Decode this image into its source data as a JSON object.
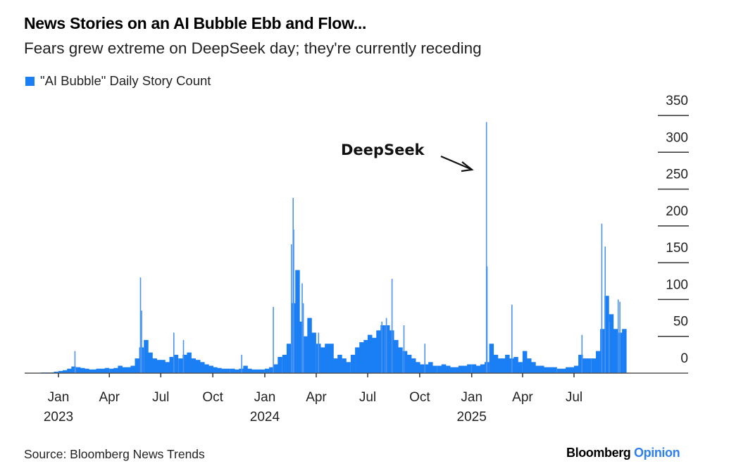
{
  "header": {
    "title": "News Stories on an AI Bubble Ebb and Flow...",
    "subtitle": "Fears grew extreme on DeepSeek day; they're currently receding"
  },
  "footer": {
    "source": "Source: Bloomberg News Trends",
    "logo_brand": "Bloomberg",
    "logo_section": "Opinion"
  },
  "colors": {
    "bar": "#1a7ef5",
    "spike": "#4a94f0",
    "axis": "#333333",
    "logo_accent": "#2f7ff0"
  },
  "chart_data": {
    "type": "bar",
    "title": "News Stories on an AI Bubble Ebb and Flow...",
    "subtitle": "Fears grew extreme on DeepSeek day; they're currently receding",
    "legend": [
      {
        "label": "\"AI Bubble\" Daily Story Count",
        "color": "#1a7ef5"
      }
    ],
    "legend_placement": "top-left",
    "ylabel": "",
    "xlabel": "",
    "ylim": [
      0,
      350
    ],
    "y_ticks": [
      "0",
      "50",
      "100",
      "150",
      "200",
      "250",
      "300",
      "350"
    ],
    "y_tick_values": [
      0,
      50,
      100,
      150,
      200,
      250,
      300,
      350
    ],
    "y_axis_side": "right",
    "x_ticks": [
      {
        "date": "2023-01-01",
        "label": "Jan",
        "year": "2023"
      },
      {
        "date": "2023-04-01",
        "label": "Apr",
        "year": ""
      },
      {
        "date": "2023-07-01",
        "label": "Jul",
        "year": ""
      },
      {
        "date": "2023-10-01",
        "label": "Oct",
        "year": ""
      },
      {
        "date": "2024-01-01",
        "label": "Jan",
        "year": "2024"
      },
      {
        "date": "2024-04-01",
        "label": "Apr",
        "year": ""
      },
      {
        "date": "2024-07-01",
        "label": "Jul",
        "year": ""
      },
      {
        "date": "2024-10-01",
        "label": "Oct",
        "year": ""
      },
      {
        "date": "2025-01-01",
        "label": "Jan",
        "year": "2025"
      },
      {
        "date": "2025-04-01",
        "label": "Apr",
        "year": ""
      },
      {
        "date": "2025-07-01",
        "label": "Jul",
        "year": ""
      }
    ],
    "weekly_by_month": [
      {
        "month": "2022-12",
        "values": [
          1,
          1,
          1,
          2
        ]
      },
      {
        "month": "2023-01",
        "values": [
          3,
          4,
          6,
          9
        ]
      },
      {
        "month": "2023-02",
        "values": [
          8,
          7,
          6,
          5
        ]
      },
      {
        "month": "2023-03",
        "values": [
          5,
          6,
          6,
          7
        ]
      },
      {
        "month": "2023-04",
        "values": [
          6,
          7,
          10,
          8
        ]
      },
      {
        "month": "2023-05",
        "values": [
          8,
          10,
          20,
          35
        ]
      },
      {
        "month": "2023-06",
        "values": [
          45,
          28,
          20,
          18
        ]
      },
      {
        "month": "2023-07",
        "values": [
          18,
          15,
          22,
          25
        ]
      },
      {
        "month": "2023-08",
        "values": [
          20,
          25,
          28,
          20
        ]
      },
      {
        "month": "2023-09",
        "values": [
          18,
          15,
          12,
          10
        ]
      },
      {
        "month": "2023-10",
        "values": [
          8,
          7,
          6,
          6
        ]
      },
      {
        "month": "2023-11",
        "values": [
          6,
          5,
          6,
          10
        ]
      },
      {
        "month": "2023-12",
        "values": [
          6,
          5,
          5,
          5
        ]
      },
      {
        "month": "2024-01",
        "values": [
          6,
          8,
          12,
          22
        ]
      },
      {
        "month": "2024-02",
        "values": [
          25,
          40,
          95,
          140
        ]
      },
      {
        "month": "2024-03",
        "values": [
          70,
          50,
          75,
          55
        ]
      },
      {
        "month": "2024-04",
        "values": [
          40,
          35,
          40,
          40
        ]
      },
      {
        "month": "2024-05",
        "values": [
          20,
          25,
          20,
          15
        ]
      },
      {
        "month": "2024-06",
        "values": [
          25,
          35,
          42,
          45
        ]
      },
      {
        "month": "2024-07",
        "values": [
          52,
          48,
          58,
          65
        ]
      },
      {
        "month": "2024-08",
        "values": [
          65,
          58,
          45,
          35
        ]
      },
      {
        "month": "2024-09",
        "values": [
          30,
          25,
          20,
          15
        ]
      },
      {
        "month": "2024-10",
        "values": [
          12,
          12,
          15,
          10
        ]
      },
      {
        "month": "2024-11",
        "values": [
          10,
          12,
          10,
          8
        ]
      },
      {
        "month": "2024-12",
        "values": [
          8,
          10,
          10,
          12
        ]
      },
      {
        "month": "2025-01",
        "values": [
          12,
          10,
          12,
          15
        ]
      },
      {
        "month": "2025-02",
        "values": [
          40,
          25,
          20,
          20
        ]
      },
      {
        "month": "2025-03",
        "values": [
          25,
          20,
          22,
          15
        ]
      },
      {
        "month": "2025-04",
        "values": [
          30,
          20,
          15,
          10
        ]
      },
      {
        "month": "2025-05",
        "values": [
          10,
          8,
          8,
          8
        ]
      },
      {
        "month": "2025-06",
        "values": [
          6,
          6,
          8,
          8
        ]
      },
      {
        "month": "2025-07",
        "values": [
          10,
          25,
          20,
          20
        ]
      },
      {
        "month": "2025-08",
        "values": [
          20,
          30,
          60,
          105
        ]
      },
      {
        "month": "2025-09",
        "values": [
          80,
          60,
          55,
          60
        ]
      }
    ],
    "daily_spikes": [
      {
        "date": "2023-01-30",
        "value": 30
      },
      {
        "date": "2023-05-26",
        "value": 130
      },
      {
        "date": "2023-05-28",
        "value": 85
      },
      {
        "date": "2023-07-24",
        "value": 55
      },
      {
        "date": "2023-08-10",
        "value": 45
      },
      {
        "date": "2023-11-21",
        "value": 25
      },
      {
        "date": "2024-01-16",
        "value": 90
      },
      {
        "date": "2024-02-17",
        "value": 175
      },
      {
        "date": "2024-02-20",
        "value": 238
      },
      {
        "date": "2024-02-21",
        "value": 195
      },
      {
        "date": "2024-03-07",
        "value": 122
      },
      {
        "date": "2024-03-09",
        "value": 95
      },
      {
        "date": "2024-04-05",
        "value": 55
      },
      {
        "date": "2024-07-26",
        "value": 70
      },
      {
        "date": "2024-08-03",
        "value": 75
      },
      {
        "date": "2024-08-13",
        "value": 128
      },
      {
        "date": "2024-09-03",
        "value": 65
      },
      {
        "date": "2024-10-10",
        "value": 40
      },
      {
        "date": "2025-01-27",
        "value": 341
      },
      {
        "date": "2025-01-28",
        "value": 145
      },
      {
        "date": "2025-03-13",
        "value": 93
      },
      {
        "date": "2025-07-15",
        "value": 52
      },
      {
        "date": "2025-08-19",
        "value": 203
      },
      {
        "date": "2025-08-25",
        "value": 172
      },
      {
        "date": "2025-09-01",
        "value": 70
      },
      {
        "date": "2025-09-17",
        "value": 100
      },
      {
        "date": "2025-09-20",
        "value": 97
      }
    ],
    "annotations": [
      {
        "label": "DeepSeek",
        "date": "2025-01-27",
        "value": 341
      }
    ]
  }
}
